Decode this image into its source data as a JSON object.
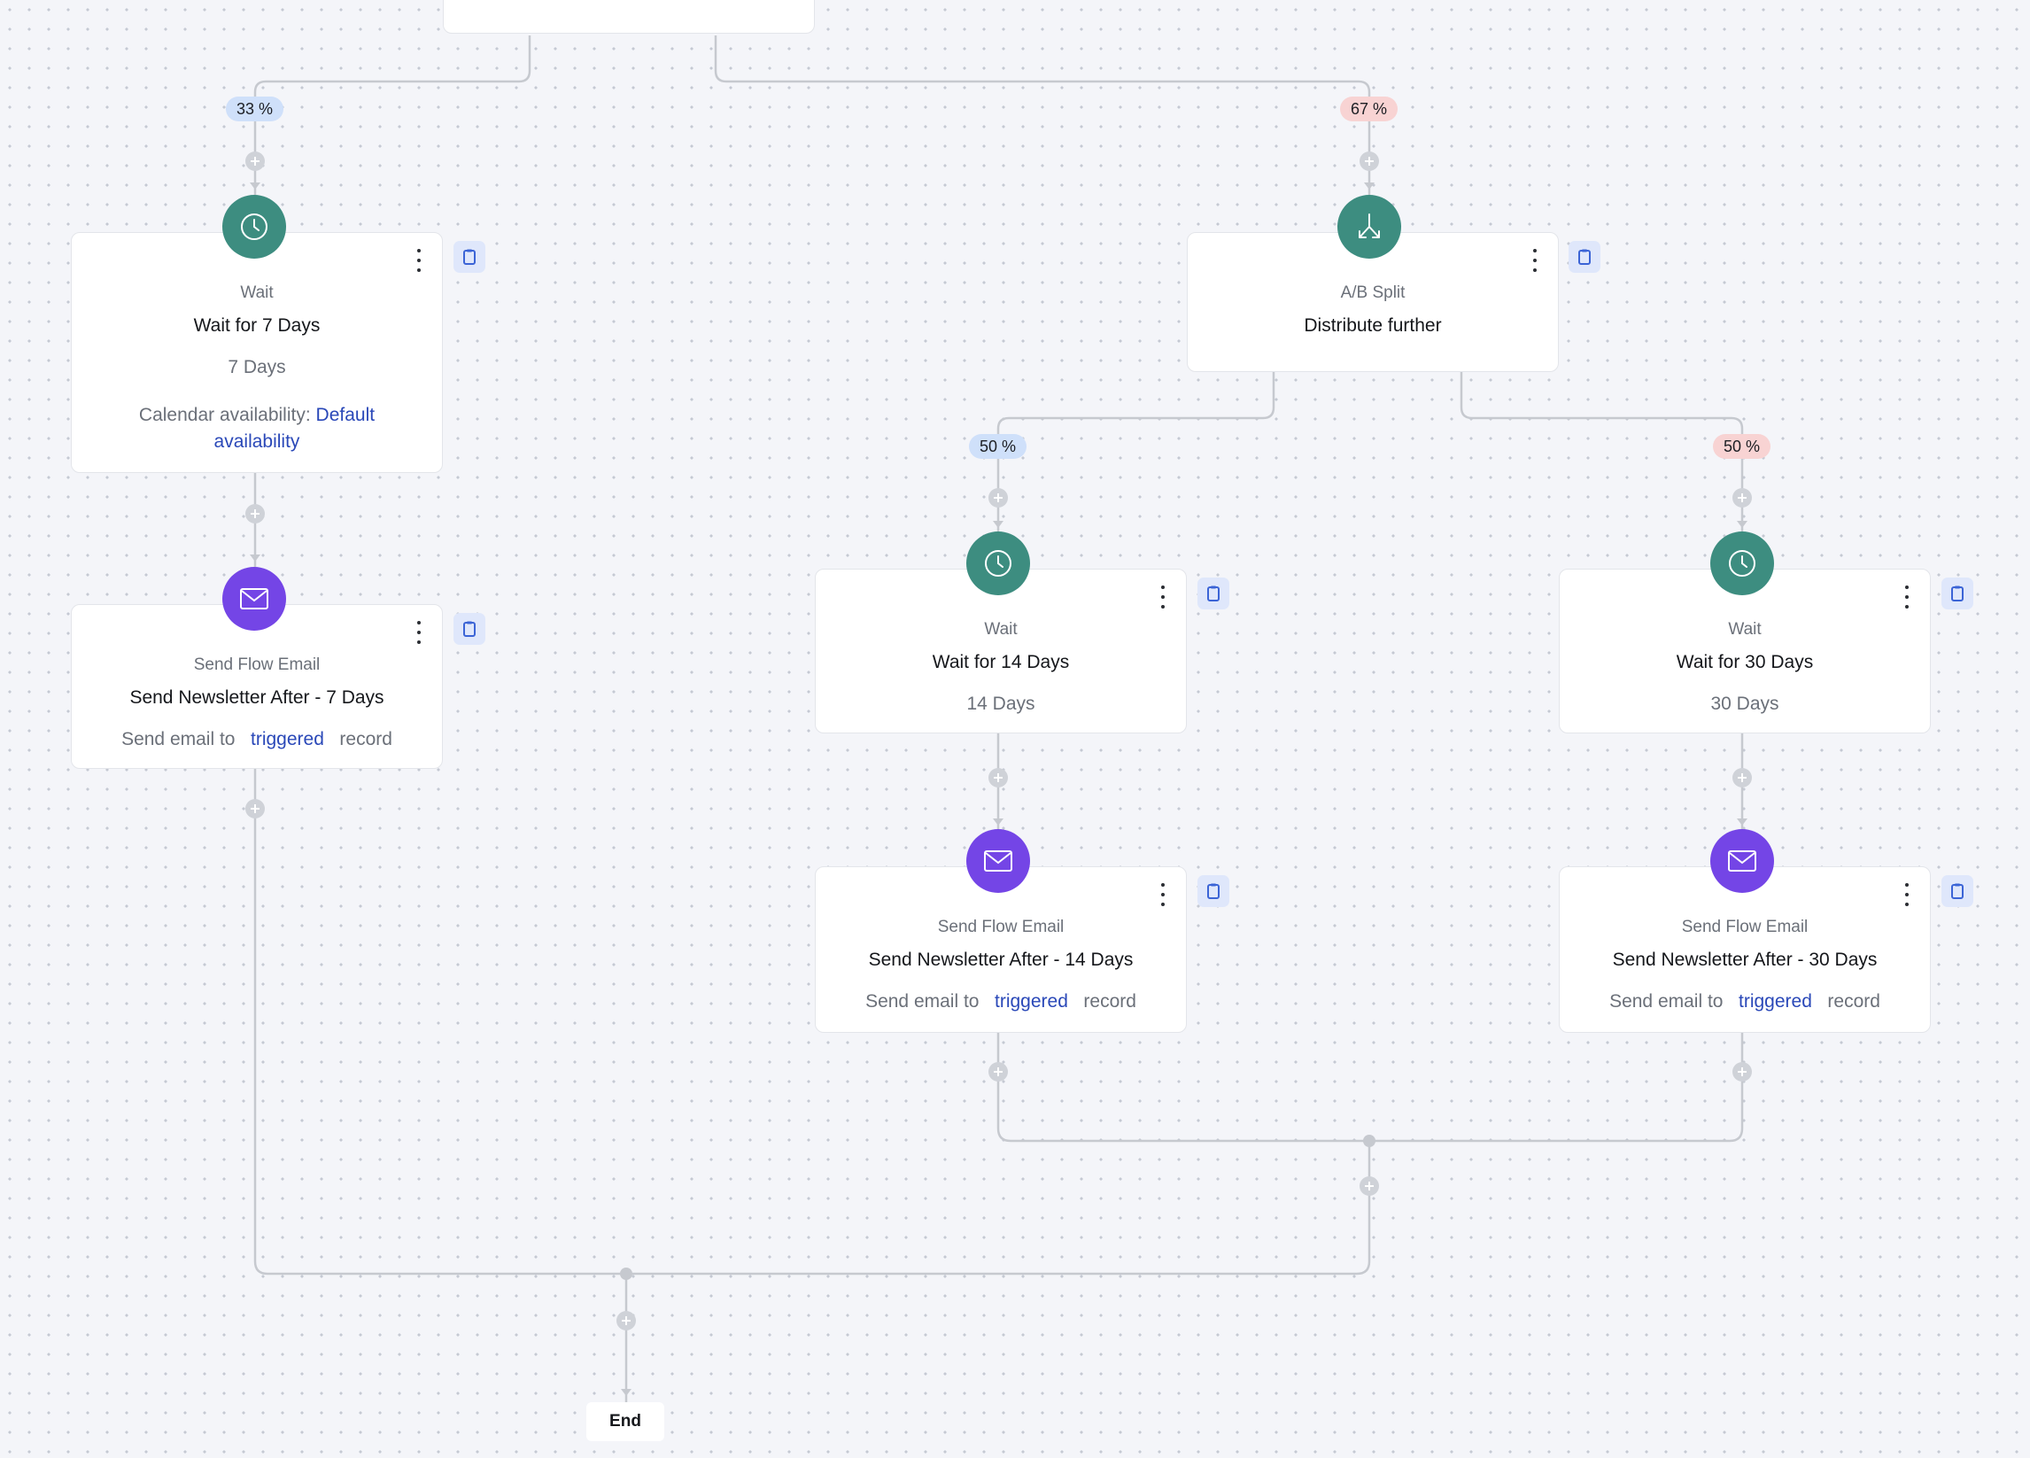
{
  "colors": {
    "wait_icon_bg": "#3d8d80",
    "email_icon_bg": "#7445e6",
    "link": "#2a48b8",
    "badge_blue": "#cfe0fa",
    "badge_red": "#f8d3d3"
  },
  "badges": {
    "top_left": "33 %",
    "top_right": "67 %",
    "split_left": "50 %",
    "split_right": "50 %"
  },
  "wait7": {
    "icon": "clock-icon",
    "type": "Wait",
    "title": "Wait for 7 Days",
    "duration": "7 Days",
    "calendar_label": "Calendar availability:",
    "calendar_value_line1": "Default",
    "calendar_value_line2": "availability"
  },
  "email7": {
    "icon": "envelope-icon",
    "type": "Send Flow Email",
    "title": "Send Newsletter After - 7 Days",
    "info_prefix": "Send email to",
    "info_link": "triggered",
    "info_suffix": "record"
  },
  "ab_split": {
    "icon": "split-icon",
    "type": "A/B Split",
    "title": "Distribute further"
  },
  "wait14": {
    "icon": "clock-icon",
    "type": "Wait",
    "title": "Wait for 14 Days",
    "duration": "14 Days"
  },
  "wait30": {
    "icon": "clock-icon",
    "type": "Wait",
    "title": "Wait for 30 Days",
    "duration": "30 Days"
  },
  "email14": {
    "icon": "envelope-icon",
    "type": "Send Flow Email",
    "title": "Send Newsletter After - 14 Days",
    "info_prefix": "Send email to",
    "info_link": "triggered",
    "info_suffix": "record"
  },
  "email30": {
    "icon": "envelope-icon",
    "type": "Send Flow Email",
    "title": "Send Newsletter After - 30 Days",
    "info_prefix": "Send email to",
    "info_link": "triggered",
    "info_suffix": "record"
  },
  "end": {
    "label": "End"
  }
}
